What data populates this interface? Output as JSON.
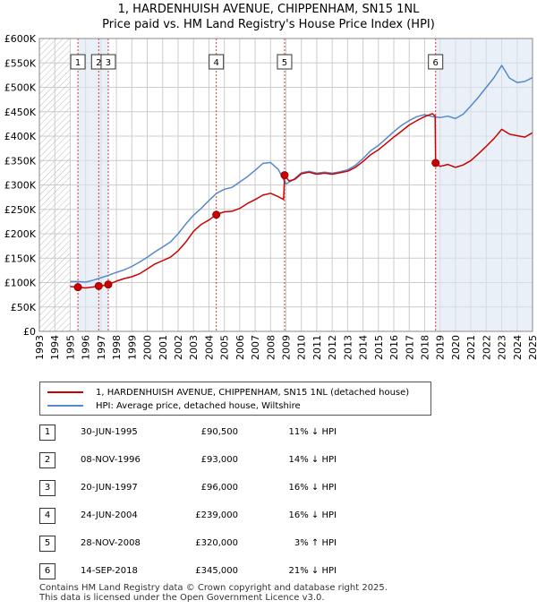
{
  "title_line1": "1, HARDENHUISH AVENUE, CHIPPENHAM, SN15 1NL",
  "title_line2": "Price paid vs. HM Land Registry's House Price Index (HPI)",
  "colors": {
    "property": "#cc0000",
    "hpi": "#5588cc",
    "shade": "#dce6f2",
    "hatch": "#bbbbbb",
    "marker_border": "#cc0000"
  },
  "legend": {
    "property": "1, HARDENHUISH AVENUE, CHIPPENHAM, SN15 1NL (detached house)",
    "hpi": "HPI: Average price, detached house, Wiltshire"
  },
  "transactions": [
    {
      "num": "1",
      "date": "30-JUN-1995",
      "price": "£90,500",
      "hpi": "11% ↓ HPI"
    },
    {
      "num": "2",
      "date": "08-NOV-1996",
      "price": "£93,000",
      "hpi": "14% ↓ HPI"
    },
    {
      "num": "3",
      "date": "20-JUN-1997",
      "price": "£96,000",
      "hpi": "16% ↓ HPI"
    },
    {
      "num": "4",
      "date": "24-JUN-2004",
      "price": "£239,000",
      "hpi": "16% ↓ HPI"
    },
    {
      "num": "5",
      "date": "28-NOV-2008",
      "price": "£320,000",
      "hpi": "3% ↑ HPI"
    },
    {
      "num": "6",
      "date": "14-SEP-2018",
      "price": "£345,000",
      "hpi": "21% ↓ HPI"
    }
  ],
  "footer_line1": "Contains HM Land Registry data © Crown copyright and database right 2025.",
  "footer_line2": "This data is licensed under the Open Government Licence v3.0.",
  "chart_data": {
    "type": "line",
    "xlim": [
      1993,
      2025
    ],
    "ylim": [
      0,
      600000
    ],
    "x_ticks": [
      "1993",
      "1994",
      "1995",
      "1996",
      "1997",
      "1998",
      "1999",
      "2000",
      "2001",
      "2002",
      "2003",
      "2004",
      "2005",
      "2006",
      "2007",
      "2008",
      "2009",
      "2010",
      "2011",
      "2012",
      "2013",
      "2014",
      "2015",
      "2016",
      "2017",
      "2018",
      "2019",
      "2020",
      "2021",
      "2022",
      "2023",
      "2024",
      "2025"
    ],
    "y_ticks": [
      {
        "value": 0,
        "label": "£0"
      },
      {
        "value": 50000,
        "label": "£50K"
      },
      {
        "value": 100000,
        "label": "£100K"
      },
      {
        "value": 150000,
        "label": "£150K"
      },
      {
        "value": 200000,
        "label": "£200K"
      },
      {
        "value": 250000,
        "label": "£250K"
      },
      {
        "value": 300000,
        "label": "£300K"
      },
      {
        "value": 350000,
        "label": "£350K"
      },
      {
        "value": 400000,
        "label": "£400K"
      },
      {
        "value": 450000,
        "label": "£450K"
      },
      {
        "value": 500000,
        "label": "£500K"
      },
      {
        "value": 550000,
        "label": "£550K"
      },
      {
        "value": 600000,
        "label": "£600K"
      }
    ],
    "grid": true,
    "legend_position": "below chart",
    "hatched_range": [
      1993,
      1995.0
    ],
    "sales": [
      {
        "label": "1",
        "x": 1995.5,
        "y": 90500
      },
      {
        "label": "2",
        "x": 1996.85,
        "y": 93000
      },
      {
        "label": "3",
        "x": 1997.47,
        "y": 96000
      },
      {
        "label": "4",
        "x": 2004.48,
        "y": 239000
      },
      {
        "label": "5",
        "x": 2008.91,
        "y": 320000
      },
      {
        "label": "6",
        "x": 2018.71,
        "y": 345000
      }
    ],
    "series": [
      {
        "name": "1, HARDENHUISH AVENUE, CHIPPENHAM, SN15 1NL (detached house)",
        "points": [
          [
            1995.0,
            92000
          ],
          [
            1995.5,
            90500
          ],
          [
            1996.0,
            89000
          ],
          [
            1996.5,
            91000
          ],
          [
            1996.85,
            93000
          ],
          [
            1997.2,
            94000
          ],
          [
            1997.47,
            96000
          ],
          [
            1998.0,
            103000
          ],
          [
            1998.5,
            108000
          ],
          [
            1999.0,
            112000
          ],
          [
            1999.5,
            118000
          ],
          [
            2000.0,
            128000
          ],
          [
            2000.5,
            138000
          ],
          [
            2001.0,
            145000
          ],
          [
            2001.5,
            152000
          ],
          [
            2002.0,
            165000
          ],
          [
            2002.5,
            183000
          ],
          [
            2003.0,
            205000
          ],
          [
            2003.5,
            219000
          ],
          [
            2004.0,
            228000
          ],
          [
            2004.48,
            239000
          ],
          [
            2005.0,
            245000
          ],
          [
            2005.5,
            246000
          ],
          [
            2006.0,
            252000
          ],
          [
            2006.5,
            262000
          ],
          [
            2007.0,
            270000
          ],
          [
            2007.5,
            279000
          ],
          [
            2008.0,
            283000
          ],
          [
            2008.5,
            276000
          ],
          [
            2008.85,
            270000
          ],
          [
            2008.91,
            320000
          ],
          [
            2009.2,
            308000
          ],
          [
            2009.6,
            312000
          ],
          [
            2010.0,
            323000
          ],
          [
            2010.5,
            326000
          ],
          [
            2011.0,
            322000
          ],
          [
            2011.5,
            324000
          ],
          [
            2012.0,
            322000
          ],
          [
            2012.5,
            325000
          ],
          [
            2013.0,
            328000
          ],
          [
            2013.5,
            336000
          ],
          [
            2014.0,
            348000
          ],
          [
            2014.5,
            362000
          ],
          [
            2015.0,
            372000
          ],
          [
            2015.5,
            385000
          ],
          [
            2016.0,
            398000
          ],
          [
            2016.5,
            410000
          ],
          [
            2017.0,
            423000
          ],
          [
            2017.5,
            432000
          ],
          [
            2018.0,
            440000
          ],
          [
            2018.5,
            446000
          ],
          [
            2018.68,
            441000
          ],
          [
            2018.71,
            345000
          ],
          [
            2019.0,
            338000
          ],
          [
            2019.5,
            342000
          ],
          [
            2020.0,
            336000
          ],
          [
            2020.5,
            341000
          ],
          [
            2021.0,
            350000
          ],
          [
            2021.5,
            364000
          ],
          [
            2022.0,
            379000
          ],
          [
            2022.5,
            395000
          ],
          [
            2023.0,
            414000
          ],
          [
            2023.5,
            404000
          ],
          [
            2024.0,
            401000
          ],
          [
            2024.5,
            398000
          ],
          [
            2025.0,
            407000
          ]
        ]
      },
      {
        "name": "HPI: Average price, detached house, Wiltshire",
        "points": [
          [
            1995.0,
            102000
          ],
          [
            1995.5,
            102000
          ],
          [
            1996.0,
            101000
          ],
          [
            1996.5,
            105000
          ],
          [
            1997.0,
            110000
          ],
          [
            1997.5,
            115000
          ],
          [
            1998.0,
            121000
          ],
          [
            1998.5,
            126000
          ],
          [
            1999.0,
            133000
          ],
          [
            1999.5,
            142000
          ],
          [
            2000.0,
            152000
          ],
          [
            2000.5,
            163000
          ],
          [
            2001.0,
            173000
          ],
          [
            2001.5,
            183000
          ],
          [
            2002.0,
            200000
          ],
          [
            2002.5,
            220000
          ],
          [
            2003.0,
            238000
          ],
          [
            2003.5,
            252000
          ],
          [
            2004.0,
            268000
          ],
          [
            2004.5,
            283000
          ],
          [
            2005.0,
            291000
          ],
          [
            2005.5,
            295000
          ],
          [
            2006.0,
            306000
          ],
          [
            2006.5,
            317000
          ],
          [
            2007.0,
            330000
          ],
          [
            2007.5,
            344000
          ],
          [
            2008.0,
            346000
          ],
          [
            2008.5,
            332000
          ],
          [
            2009.0,
            302000
          ],
          [
            2009.5,
            311000
          ],
          [
            2010.0,
            325000
          ],
          [
            2010.5,
            328000
          ],
          [
            2011.0,
            324000
          ],
          [
            2011.5,
            326000
          ],
          [
            2012.0,
            324000
          ],
          [
            2012.5,
            327000
          ],
          [
            2013.0,
            331000
          ],
          [
            2013.5,
            340000
          ],
          [
            2014.0,
            354000
          ],
          [
            2014.5,
            370000
          ],
          [
            2015.0,
            381000
          ],
          [
            2015.5,
            395000
          ],
          [
            2016.0,
            409000
          ],
          [
            2016.5,
            422000
          ],
          [
            2017.0,
            432000
          ],
          [
            2017.5,
            440000
          ],
          [
            2018.0,
            444000
          ],
          [
            2018.5,
            440000
          ],
          [
            2019.0,
            438000
          ],
          [
            2019.5,
            441000
          ],
          [
            2020.0,
            436000
          ],
          [
            2020.5,
            445000
          ],
          [
            2021.0,
            462000
          ],
          [
            2021.5,
            480000
          ],
          [
            2022.0,
            500000
          ],
          [
            2022.5,
            520000
          ],
          [
            2023.0,
            545000
          ],
          [
            2023.5,
            519000
          ],
          [
            2024.0,
            510000
          ],
          [
            2024.5,
            512000
          ],
          [
            2025.0,
            520000
          ]
        ]
      }
    ]
  }
}
